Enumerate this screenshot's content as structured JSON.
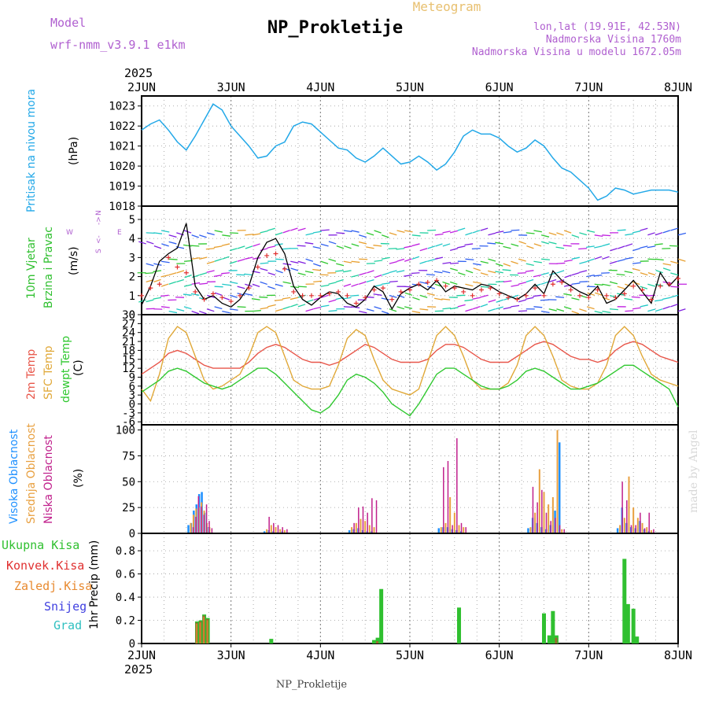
{
  "header": {
    "model_label": "Model",
    "model_name": "wrf-nmm_v3.9.1 e1km",
    "product": "Meteogram",
    "station": "NP_Prokletije",
    "lonlat": "lon,lat (19.91E, 42.53N)",
    "elevation": "Nadmorska Visina 1760m",
    "model_elevation": "Nadmorska Visina u modelu 1672.05m",
    "footer_station": "NP_Prokletije",
    "credit": "made by Angel"
  },
  "colors": {
    "pressure": "#22a8e8",
    "temp2m": "#e8564a",
    "sfc": "#e0a838",
    "dew": "#30c830",
    "gust": "#000000",
    "wind_marker": "#e03030",
    "high_cloud": "#1e90ff",
    "mid_cloud": "#e8a040",
    "low_cloud": "#c0208c",
    "precip_total": "#30c030",
    "precip_conv": "#e03030",
    "precip_frz": "#e88a30",
    "snow": "#4040e0",
    "hail": "#30c0c0"
  },
  "chart_data": [
    {
      "type": "line",
      "panel": "pressure",
      "ylabel_lines": [
        "Pritisak na nivou mora",
        "(hPa)"
      ],
      "x_labels": [
        "2JUN",
        "3JUN",
        "4JUN",
        "5JUN",
        "6JUN",
        "7JUN",
        "8JUN"
      ],
      "x_year": "2025",
      "xlim": [
        0,
        6
      ],
      "yticks": [
        1018,
        1019,
        1020,
        1021,
        1022,
        1023
      ],
      "ylim": [
        1018,
        1023.5
      ],
      "series": [
        {
          "x": [
            0,
            0.1,
            0.2,
            0.3,
            0.4,
            0.5,
            0.6,
            0.7,
            0.8,
            0.9,
            1.0,
            1.1,
            1.2,
            1.3,
            1.4,
            1.5,
            1.6,
            1.7,
            1.8,
            1.9,
            2.0,
            2.1,
            2.2,
            2.3,
            2.4,
            2.5,
            2.6,
            2.7,
            2.8,
            2.9,
            3.0,
            3.1,
            3.2,
            3.3,
            3.4,
            3.5,
            3.6,
            3.7,
            3.8,
            3.9,
            4.0,
            4.1,
            4.2,
            4.3,
            4.4,
            4.5,
            4.6,
            4.7,
            4.8,
            4.9,
            5.0,
            5.1,
            5.2,
            5.3,
            5.4,
            5.5,
            5.6,
            5.7,
            5.8,
            5.9,
            6.0
          ],
          "values": [
            1021.8,
            1022.1,
            1022.3,
            1021.8,
            1021.2,
            1020.8,
            1021.5,
            1022.3,
            1023.1,
            1022.8,
            1022.0,
            1021.5,
            1021.0,
            1020.4,
            1020.5,
            1021.0,
            1021.2,
            1022.0,
            1022.2,
            1022.1,
            1021.7,
            1021.3,
            1020.9,
            1020.8,
            1020.4,
            1020.2,
            1020.5,
            1020.9,
            1020.5,
            1020.1,
            1020.2,
            1020.5,
            1020.2,
            1019.8,
            1020.1,
            1020.7,
            1021.5,
            1021.8,
            1021.6,
            1021.6,
            1021.4,
            1021.0,
            1020.7,
            1020.9,
            1021.3,
            1021.0,
            1020.4,
            1019.9,
            1019.7,
            1019.3,
            1018.9,
            1018.3,
            1018.5,
            1018.9,
            1018.8,
            1018.6,
            1018.7,
            1018.8,
            1018.8,
            1018.8,
            1018.7
          ]
        }
      ]
    },
    {
      "type": "line",
      "panel": "wind",
      "ylabel_lines": [
        "10m Vjetar",
        "Brzina i Pravac",
        "(m/s)"
      ],
      "compass": [
        "N",
        "->",
        "<-",
        "W",
        "E",
        "S"
      ],
      "yticks": [
        0,
        1,
        2,
        3,
        4,
        5
      ],
      "ylim": [
        0,
        5.7
      ],
      "series": [
        {
          "name": "",
          "x": [
            0,
            0.1,
            0.2,
            0.3,
            0.4,
            0.5,
            0.6,
            0.7,
            0.8,
            0.9,
            1.0,
            1.1,
            1.2,
            1.3,
            1.4,
            1.5,
            1.6,
            1.7,
            1.8,
            1.9,
            2.0,
            2.1,
            2.2,
            2.3,
            2.4,
            2.5,
            2.6,
            2.7,
            2.8,
            2.9,
            3.0,
            3.1,
            3.2,
            3.3,
            3.4,
            3.5,
            3.6,
            3.7,
            3.8,
            3.9,
            4.0,
            4.1,
            4.2,
            4.3,
            4.4,
            4.5,
            4.6,
            4.7,
            4.8,
            4.9,
            5.0,
            5.1,
            5.2,
            5.3,
            5.4,
            5.5,
            5.6,
            5.7,
            5.8,
            5.9,
            6.0
          ],
          "values": [
            0.5,
            1.5,
            2.8,
            3.2,
            3.5,
            4.8,
            1.5,
            0.8,
            1.0,
            0.6,
            0.4,
            0.8,
            1.5,
            3.0,
            3.8,
            4.0,
            3.2,
            1.5,
            0.8,
            0.5,
            0.9,
            1.2,
            1.1,
            0.6,
            0.4,
            0.8,
            1.5,
            1.2,
            0.3,
            1.1,
            1.4,
            1.6,
            1.3,
            1.8,
            1.2,
            1.5,
            1.4,
            1.3,
            1.6,
            1.5,
            1.2,
            1.0,
            0.8,
            1.1,
            1.6,
            1.1,
            2.3,
            1.8,
            1.5,
            1.2,
            1.0,
            1.5,
            0.6,
            0.8,
            1.3,
            1.8,
            1.2,
            0.6,
            2.2,
            1.5,
            2.0
          ],
          "markers": [
            1.0,
            1.4,
            1.6,
            3.0,
            2.5,
            2.2,
            1.2,
            0.8,
            1.1,
            0.9,
            0.7,
            1.0,
            1.4,
            2.5,
            3.1,
            3.2,
            2.4,
            1.2,
            1.0,
            1.0,
            1.0,
            1.1,
            1.2,
            1.0,
            0.6,
            0.9,
            1.3,
            1.4,
            0.8,
            1.2,
            1.3,
            1.6,
            1.7,
            1.8,
            1.5,
            1.4,
            1.2,
            1.0,
            1.3,
            1.4,
            1.1,
            0.9,
            0.8,
            1.0,
            1.4,
            1.0,
            1.6,
            1.7,
            1.3,
            1.0,
            0.9,
            1.3,
            1.0,
            0.9,
            1.1,
            1.5,
            1.3,
            0.8,
            1.5,
            1.6,
            1.9
          ]
        }
      ]
    },
    {
      "type": "line",
      "panel": "temperature",
      "ylabel_lines": [
        "2m Temp",
        "SFC Temp",
        "dewpt Temp",
        "(C)"
      ],
      "yticks": [
        -6,
        -3,
        0,
        3,
        6,
        9,
        12,
        15,
        18,
        21,
        24,
        27,
        30
      ],
      "ylim": [
        -7,
        30
      ],
      "x": [
        0,
        0.1,
        0.2,
        0.3,
        0.4,
        0.5,
        0.6,
        0.7,
        0.8,
        0.9,
        1.0,
        1.1,
        1.2,
        1.3,
        1.4,
        1.5,
        1.6,
        1.7,
        1.8,
        1.9,
        2.0,
        2.1,
        2.2,
        2.3,
        2.4,
        2.5,
        2.6,
        2.7,
        2.8,
        2.9,
        3.0,
        3.1,
        3.2,
        3.3,
        3.4,
        3.5,
        3.6,
        3.7,
        3.8,
        3.9,
        4.0,
        4.1,
        4.2,
        4.3,
        4.4,
        4.5,
        4.6,
        4.7,
        4.8,
        4.9,
        5.0,
        5.1,
        5.2,
        5.3,
        5.4,
        5.5,
        5.6,
        5.7,
        5.8,
        5.9,
        6.0
      ],
      "series": [
        {
          "name": "2m Temp",
          "values": [
            10,
            12,
            14,
            17,
            18,
            17,
            15,
            13,
            12,
            12,
            12,
            12,
            14,
            17,
            19,
            20,
            19,
            17,
            15,
            14,
            14,
            13,
            14,
            16,
            18,
            20,
            19,
            17,
            15,
            14,
            14,
            14,
            15,
            18,
            20,
            20,
            19,
            17,
            15,
            14,
            14,
            14,
            16,
            18,
            20,
            21,
            20,
            18,
            16,
            15,
            15,
            14,
            15,
            18,
            20,
            21,
            20,
            18,
            16,
            15,
            14
          ]
        },
        {
          "name": "SFC Temp",
          "values": [
            5,
            1,
            10,
            22,
            26,
            24,
            16,
            8,
            5,
            6,
            8,
            10,
            16,
            24,
            26,
            24,
            16,
            8,
            6,
            5,
            5,
            6,
            13,
            22,
            25,
            23,
            15,
            8,
            5,
            4,
            3,
            5,
            14,
            23,
            26,
            23,
            16,
            8,
            5,
            5,
            5,
            7,
            13,
            23,
            26,
            23,
            16,
            8,
            6,
            5,
            5,
            7,
            13,
            23,
            26,
            23,
            16,
            10,
            8,
            7,
            6
          ]
        },
        {
          "name": "dewpt Temp",
          "values": [
            4,
            6,
            8,
            11,
            12,
            11,
            9,
            7,
            6,
            5,
            6,
            8,
            10,
            12,
            12,
            10,
            7,
            4,
            1,
            -2,
            -3,
            -1,
            3,
            8,
            10,
            9,
            7,
            4,
            0,
            -2,
            -4,
            0,
            5,
            10,
            12,
            12,
            10,
            8,
            6,
            5,
            5,
            6,
            8,
            11,
            12,
            11,
            9,
            7,
            5,
            5,
            6,
            7,
            9,
            11,
            13,
            13,
            11,
            9,
            7,
            5,
            -1
          ]
        }
      ]
    },
    {
      "type": "bar",
      "panel": "cloud",
      "ylabel_lines": [
        "Visoka Oblacnost",
        "Srednja Oblacnost",
        "Niska Oblacnost",
        "(%)"
      ],
      "yticks": [
        0,
        25,
        50,
        75,
        100
      ],
      "ylim": [
        0,
        105
      ],
      "x": [
        0.55,
        0.58,
        0.61,
        0.64,
        0.67,
        0.7,
        0.73,
        0.76,
        1.4,
        1.45,
        1.5,
        1.55,
        1.6,
        2.35,
        2.4,
        2.45,
        2.5,
        2.55,
        2.6,
        3.35,
        3.4,
        3.45,
        3.5,
        3.55,
        3.6,
        4.35,
        4.4,
        4.45,
        4.5,
        4.55,
        4.6,
        4.65,
        4.7,
        5.35,
        5.4,
        5.45,
        5.5,
        5.55,
        5.6,
        5.65,
        5.7
      ],
      "series": [
        {
          "name": "Visoka Oblacnost",
          "values": [
            8,
            10,
            22,
            28,
            38,
            40,
            20,
            6,
            2,
            3,
            2,
            1,
            2,
            3,
            4,
            5,
            3,
            2,
            2,
            5,
            6,
            6,
            4,
            3,
            2,
            5,
            15,
            10,
            6,
            4,
            8,
            22,
            88,
            5,
            25,
            10,
            6,
            5,
            12,
            4,
            2
          ]
        },
        {
          "name": "Srednja Oblacnost",
          "values": [
            10,
            18,
            24,
            25,
            30,
            22,
            10,
            6,
            4,
            8,
            6,
            4,
            3,
            6,
            10,
            14,
            12,
            8,
            6,
            6,
            10,
            35,
            20,
            8,
            6,
            6,
            20,
            62,
            40,
            28,
            35,
            100,
            4,
            8,
            15,
            55,
            25,
            15,
            10,
            6,
            3
          ]
        },
        {
          "name": "Niska Oblacnost",
          "values": [
            6,
            16,
            36,
            26,
            18,
            28,
            12,
            5,
            16,
            10,
            8,
            6,
            4,
            10,
            25,
            26,
            20,
            34,
            32,
            64,
            70,
            8,
            92,
            10,
            6,
            45,
            30,
            42,
            20,
            12,
            15,
            8,
            4,
            50,
            32,
            8,
            8,
            20,
            5,
            20,
            4
          ]
        }
      ]
    },
    {
      "type": "bar",
      "panel": "precip",
      "ylabel_lines": [
        "1hr Precip (mm)"
      ],
      "legend": [
        "Ukupna Kisa",
        "Konvek.Kisa",
        "Zaledj.Kisa",
        "Snijeg",
        "Grad"
      ],
      "yticks": [
        0,
        0.2,
        0.4,
        0.6,
        0.8
      ],
      "ylim": [
        0,
        0.95
      ],
      "bars": [
        {
          "x": 0.62,
          "total": 0.19,
          "conv": 0.18,
          "frz": 0.17
        },
        {
          "x": 0.66,
          "total": 0.2,
          "conv": 0.19,
          "frz": 0.18
        },
        {
          "x": 0.7,
          "total": 0.25,
          "conv": 0.24,
          "frz": 0.23
        },
        {
          "x": 0.74,
          "total": 0.22,
          "conv": 0.21,
          "frz": 0.2
        },
        {
          "x": 1.45,
          "total": 0.04,
          "conv": 0.0,
          "frz": 0.0
        },
        {
          "x": 2.6,
          "total": 0.03,
          "conv": 0.0,
          "frz": 0.0
        },
        {
          "x": 2.64,
          "total": 0.05,
          "conv": 0.02,
          "frz": 0.0
        },
        {
          "x": 2.68,
          "total": 0.47,
          "conv": 0.0,
          "frz": 0.0
        },
        {
          "x": 3.55,
          "total": 0.31,
          "conv": 0.0,
          "frz": 0.0
        },
        {
          "x": 4.5,
          "total": 0.26,
          "conv": 0.0,
          "frz": 0.0
        },
        {
          "x": 4.56,
          "total": 0.07,
          "conv": 0.0,
          "frz": 0.0
        },
        {
          "x": 4.6,
          "total": 0.28,
          "conv": 0.0,
          "frz": 0.0
        },
        {
          "x": 4.64,
          "total": 0.07,
          "conv": 0.05,
          "frz": 0.0
        },
        {
          "x": 5.4,
          "total": 0.73,
          "conv": 0.0,
          "frz": 0.0
        },
        {
          "x": 5.44,
          "total": 0.34,
          "conv": 0.0,
          "frz": 0.0
        },
        {
          "x": 5.5,
          "total": 0.3,
          "conv": 0.0,
          "frz": 0.0
        },
        {
          "x": 5.54,
          "total": 0.06,
          "conv": 0.0,
          "frz": 0.0
        }
      ]
    }
  ]
}
